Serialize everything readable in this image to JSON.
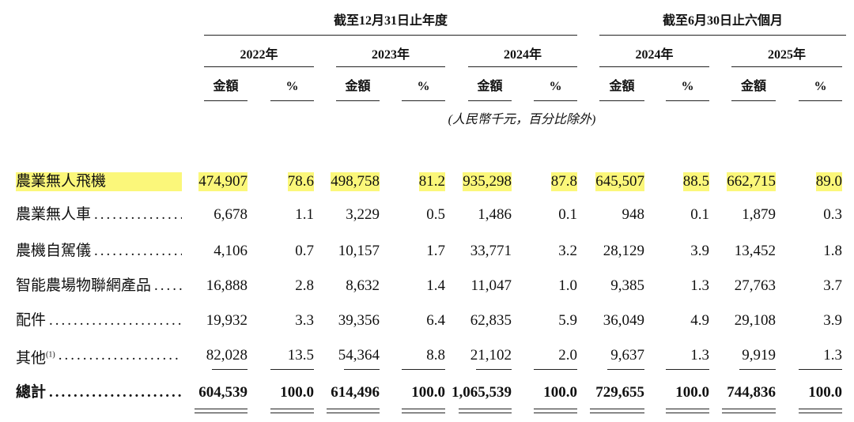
{
  "header": {
    "groups": [
      "截至12月31日止年度",
      "截至6月30日止六個月"
    ],
    "years": [
      "2022年",
      "2023年",
      "2024年",
      "2024年",
      "2025年"
    ],
    "amount": "金額",
    "percent": "%",
    "note": "(人民幣千元，百分比除外)"
  },
  "table": {
    "rows": [
      {
        "label": "農業無人飛機",
        "values": [
          "474,907",
          "78.6",
          "498,758",
          "81.2",
          "935,298",
          "87.8",
          "645,507",
          "88.5",
          "662,715",
          "89.0"
        ]
      },
      {
        "label": "農業無人車",
        "values": [
          "6,678",
          "1.1",
          "3,229",
          "0.5",
          "1,486",
          "0.1",
          "948",
          "0.1",
          "1,879",
          "0.3"
        ]
      },
      {
        "label": "農機自駕儀",
        "values": [
          "4,106",
          "0.7",
          "10,157",
          "1.7",
          "33,771",
          "3.2",
          "28,129",
          "3.9",
          "13,452",
          "1.8"
        ]
      },
      {
        "label": "智能農場物聯網產品",
        "values": [
          "16,888",
          "2.8",
          "8,632",
          "1.4",
          "11,047",
          "1.0",
          "9,385",
          "1.3",
          "27,763",
          "3.7"
        ]
      },
      {
        "label": "配件",
        "values": [
          "19,932",
          "3.3",
          "39,356",
          "6.4",
          "62,835",
          "5.9",
          "36,049",
          "4.9",
          "29,108",
          "3.9"
        ]
      },
      {
        "label": "其他",
        "footnote": "(1)",
        "values": [
          "82,028",
          "13.5",
          "54,364",
          "8.8",
          "21,102",
          "2.0",
          "9,637",
          "1.3",
          "9,919",
          "1.3"
        ]
      }
    ],
    "total": {
      "label": "總計",
      "values": [
        "604,539",
        "100.0",
        "614,496",
        "100.0",
        "1,065,539",
        "100.0",
        "729,655",
        "100.0",
        "744,836",
        "100.0"
      ]
    }
  }
}
